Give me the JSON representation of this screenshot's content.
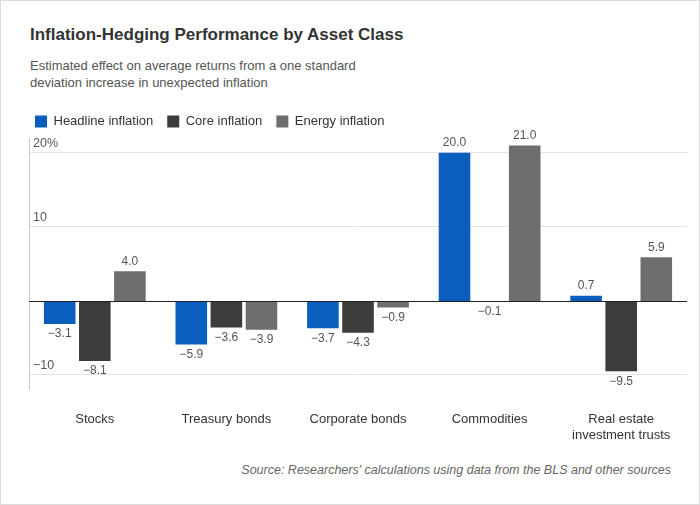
{
  "chart_data": {
    "type": "bar",
    "title": "Inflation-Hedging Performance by Asset Class",
    "subtitle": "Estimated effect on average returns from a one standard deviation increase in unexpected inflation",
    "source": "Source: Researchers' calculations using data from the BLS and other sources",
    "categories": [
      "Stocks",
      "Treasury bonds",
      "Corporate bonds",
      "Commodities",
      "Real estate investment trusts"
    ],
    "series": [
      {
        "name": "Headline inflation",
        "color": "#0b5ebd",
        "values": [
          -3.1,
          -5.9,
          -3.7,
          20.0,
          0.7
        ],
        "value_labels": [
          "−3.1",
          "−5.9",
          "−3.7",
          "20.0",
          "0.7"
        ]
      },
      {
        "name": "Core inflation",
        "color": "#3c3c3c",
        "values": [
          -8.1,
          -3.6,
          -4.3,
          -0.1,
          -9.5
        ],
        "value_labels": [
          "−8.1",
          "−3.6",
          "−4.3",
          "−0.1",
          "−9.5"
        ]
      },
      {
        "name": "Energy inflation",
        "color": "#6e6e6e",
        "values": [
          4.0,
          -3.9,
          -0.9,
          21.0,
          5.9
        ],
        "value_labels": [
          "4.0",
          "−3.9",
          "−0.9",
          "21.0",
          "5.9"
        ]
      }
    ],
    "ylim": [
      -12,
      22
    ],
    "yticks": [
      {
        "value": -10,
        "label": "−10"
      },
      10,
      {
        "value": 20,
        "label": "20%"
      }
    ],
    "grid": true,
    "legend": "top-left",
    "data_labels": true
  }
}
